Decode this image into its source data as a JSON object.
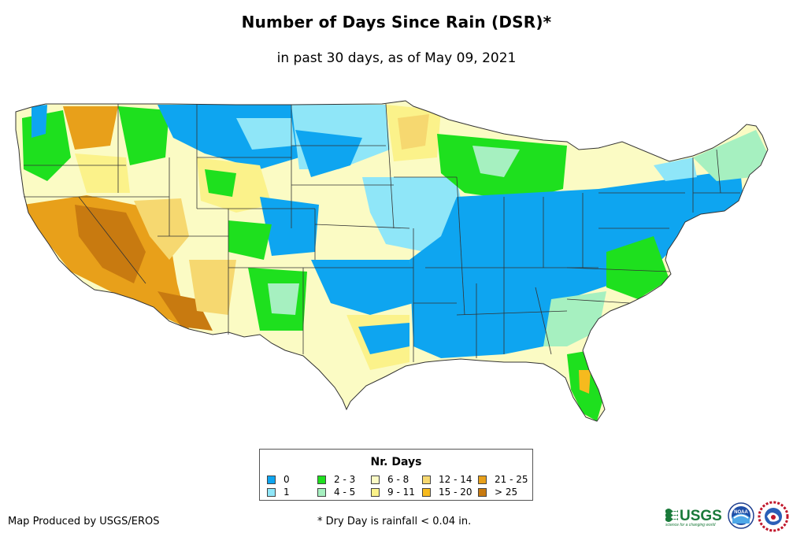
{
  "header": {
    "title": "Number of Days Since Rain (DSR)*",
    "subtitle": "in past 30 days, as of May 09, 2021"
  },
  "map": {
    "region": "Contiguous United States",
    "metric": "days since rain"
  },
  "legend": {
    "title": "Nr. Days",
    "items": [
      {
        "label": "0",
        "color": "#0ea5f0"
      },
      {
        "label": "1",
        "color": "#8fe6f8"
      },
      {
        "label": "2 - 3",
        "color": "#1ee01e"
      },
      {
        "label": "4 - 5",
        "color": "#a6f0c0"
      },
      {
        "label": "6 - 8",
        "color": "#fbfbc4"
      },
      {
        "label": "9 - 11",
        "color": "#fbf28a"
      },
      {
        "label": "12 - 14",
        "color": "#f6d870"
      },
      {
        "label": "15 - 20",
        "color": "#f6ba1e"
      },
      {
        "label": "21 - 25",
        "color": "#e8a01a"
      },
      {
        "label": "> 25",
        "color": "#c87a10"
      }
    ]
  },
  "footer": {
    "credit": "Map Produced by USGS/EROS",
    "note": "* Dry Day is rainfall < 0.04 in.",
    "logos": {
      "usgs_text": "USGS",
      "usgs_tagline": "science for a changing world",
      "noaa_text": "NOAA"
    }
  }
}
